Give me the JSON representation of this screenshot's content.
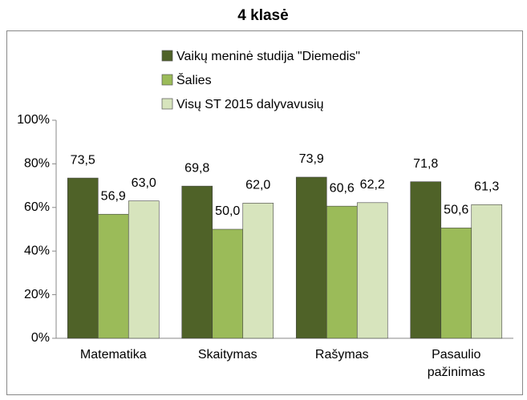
{
  "chart_data": {
    "type": "bar",
    "title": "4 klasė",
    "categories": [
      "Matematika",
      "Skaitymas",
      "Rašymas",
      "Pasaulio pažinimas"
    ],
    "series": [
      {
        "name": "Vaikų meninė studija \"Diemedis\"",
        "color": "#4f6228",
        "values": [
          73.5,
          69.8,
          73.9,
          71.8
        ],
        "value_labels": [
          "73,5",
          "69,8",
          "73,9",
          "71,8"
        ]
      },
      {
        "name": "Šalies",
        "color": "#9bbb59",
        "values": [
          56.9,
          50.0,
          60.6,
          50.6
        ],
        "value_labels": [
          "56,9",
          "50,0",
          "60,6",
          "50,6"
        ]
      },
      {
        "name": "Visų ST 2015 dalyvavusių",
        "color": "#d7e4bd",
        "values": [
          63.0,
          62.0,
          62.2,
          61.3
        ],
        "value_labels": [
          "63,0",
          "62,0",
          "62,2",
          "61,3"
        ]
      }
    ],
    "ylim": [
      0,
      100
    ],
    "yticks": [
      {
        "value": 0,
        "label": "0%"
      },
      {
        "value": 20,
        "label": "20%"
      },
      {
        "value": 40,
        "label": "40%"
      },
      {
        "value": 60,
        "label": "60%"
      },
      {
        "value": 80,
        "label": "80%"
      },
      {
        "value": 100,
        "label": "100%"
      }
    ],
    "grid": false,
    "legend": "top"
  }
}
